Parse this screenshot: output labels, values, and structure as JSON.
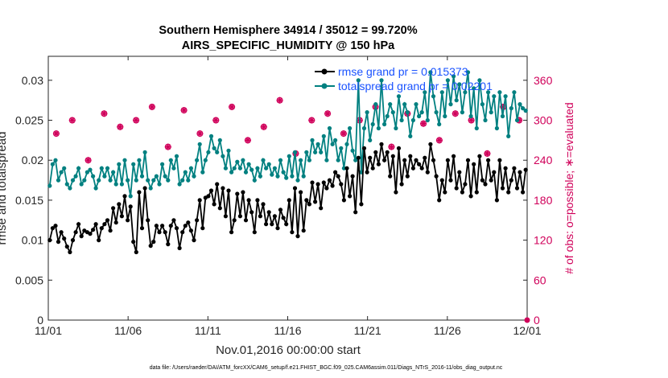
{
  "figure": {
    "title_line1": "Southern Hemisphere 34914 / 35012 = 99.720%",
    "title_line2": "AIRS_SPECIFIC_HUMIDITY @ 150 hPa",
    "xlabel": "Nov.01,2016 00:00:00 start",
    "ylabel_left": "rmse and totalspread",
    "ylabel_right": "# of obs: o=possible; ∗=evaluated",
    "footnote": "data file: /Users/raeder/DAI/ATM_forcXX/CAM6_setup/f.e21.FHIST_BGC.f09_025.CAM6assim.011/Diags_NTrS_2016-11/obs_diag_output.nc"
  },
  "colors": {
    "rmse": "#000000",
    "spread": "#008080",
    "obs": "#d0005a",
    "legend_text": "#1a53ff"
  },
  "chart_data": {
    "type": "line",
    "title": "Southern Hemisphere 34914 / 35012 = 99.720%",
    "subtitle": "AIRS_SPECIFIC_HUMIDITY @ 150 hPa",
    "xlabel": "Nov.01,2016 00:00:00 start",
    "ylabel": "rmse and totalspread",
    "y2label": "# of obs: o=possible; ∗=evaluated",
    "x_ticks": [
      "11/01",
      "11/06",
      "11/11",
      "11/16",
      "11/21",
      "11/26",
      "12/01"
    ],
    "xlim_days": [
      0,
      30
    ],
    "ylim": [
      0,
      0.033
    ],
    "y_ticks": [
      "0",
      "0.005",
      "0.01",
      "0.015",
      "0.02",
      "0.025",
      "0.03"
    ],
    "y2lim": [
      0,
      396
    ],
    "y2_ticks": [
      "0",
      "60",
      "120",
      "180",
      "240",
      "300",
      "360"
    ],
    "legend_position": "top-right",
    "grid": false,
    "series": [
      {
        "name": "rmse grand pr = 0.015373",
        "axis": "left",
        "marker": "circle",
        "line": true,
        "values": [
          0.01,
          0.0115,
          0.0118,
          0.0098,
          0.011,
          0.0102,
          0.0092,
          0.0085,
          0.01,
          0.011,
          0.012,
          0.0105,
          0.0112,
          0.011,
          0.0108,
          0.0113,
          0.012,
          0.01,
          0.0115,
          0.012,
          0.0125,
          0.0112,
          0.014,
          0.0122,
          0.0145,
          0.013,
          0.0155,
          0.0125,
          0.0142,
          0.0098,
          0.0085,
          0.016,
          0.0115,
          0.0165,
          0.0125,
          0.0093,
          0.0098,
          0.0118,
          0.011,
          0.0118,
          0.011,
          0.0095,
          0.0118,
          0.0125,
          0.0115,
          0.009,
          0.011,
          0.0118,
          0.0122,
          0.0112,
          0.01,
          0.0125,
          0.015,
          0.0115,
          0.0153,
          0.0155,
          0.0162,
          0.0145,
          0.017,
          0.014,
          0.0165,
          0.013,
          0.0162,
          0.011,
          0.0125,
          0.0158,
          0.013,
          0.016,
          0.0125,
          0.015,
          0.0135,
          0.011,
          0.015,
          0.013,
          0.0145,
          0.012,
          0.0135,
          0.012,
          0.013,
          0.0115,
          0.0138,
          0.0128,
          0.012,
          0.015,
          0.011,
          0.0165,
          0.0105,
          0.016,
          0.0112,
          0.015,
          0.0145,
          0.0172,
          0.0148,
          0.017,
          0.014,
          0.0172,
          0.0165,
          0.0175,
          0.0168,
          0.0185,
          0.018,
          0.017,
          0.015,
          0.019,
          0.0155,
          0.018,
          0.0135,
          0.0203,
          0.0145,
          0.0215,
          0.0185,
          0.0203,
          0.019,
          0.021,
          0.0195,
          0.022,
          0.02,
          0.021,
          0.018,
          0.0205,
          0.016,
          0.0215,
          0.017,
          0.02,
          0.018,
          0.0205,
          0.019,
          0.02,
          0.0195,
          0.019,
          0.0203,
          0.0185,
          0.022,
          0.02,
          0.018,
          0.015,
          0.0175,
          0.016,
          0.02,
          0.0175,
          0.0205,
          0.0165,
          0.0185,
          0.016,
          0.017,
          0.02,
          0.0155,
          0.0195,
          0.016,
          0.0205,
          0.0175,
          0.017,
          0.02,
          0.0175,
          0.0185,
          0.015,
          0.02,
          0.0165,
          0.019,
          0.016,
          0.0175,
          0.019,
          0.0165,
          0.0185,
          0.016,
          0.0188
        ]
      },
      {
        "name": "totalspread grand pr = 0.02201",
        "axis": "left",
        "marker": "circle",
        "line": true,
        "values": [
          0.0168,
          0.0195,
          0.02,
          0.0175,
          0.0185,
          0.019,
          0.017,
          0.0165,
          0.0175,
          0.018,
          0.019,
          0.017,
          0.0175,
          0.0185,
          0.0188,
          0.018,
          0.0165,
          0.0175,
          0.019,
          0.018,
          0.019,
          0.0175,
          0.0185,
          0.017,
          0.0195,
          0.017,
          0.02,
          0.0175,
          0.0155,
          0.0195,
          0.0175,
          0.02,
          0.018,
          0.021,
          0.0175,
          0.0165,
          0.0175,
          0.018,
          0.017,
          0.0195,
          0.018,
          0.0175,
          0.02,
          0.019,
          0.0205,
          0.017,
          0.0175,
          0.0185,
          0.0175,
          0.019,
          0.018,
          0.02,
          0.022,
          0.0185,
          0.02,
          0.021,
          0.023,
          0.0215,
          0.021,
          0.0225,
          0.0205,
          0.019,
          0.0212,
          0.0185,
          0.019,
          0.0198,
          0.019,
          0.02,
          0.0185,
          0.0195,
          0.0188,
          0.0175,
          0.019,
          0.018,
          0.02,
          0.019,
          0.0195,
          0.0182,
          0.019,
          0.018,
          0.02,
          0.0185,
          0.0178,
          0.0205,
          0.018,
          0.021,
          0.0175,
          0.02,
          0.018,
          0.021,
          0.02,
          0.0225,
          0.021,
          0.022,
          0.021,
          0.023,
          0.02,
          0.024,
          0.022,
          0.0225,
          0.02,
          0.0215,
          0.019,
          0.022,
          0.024,
          0.0212,
          0.02,
          0.03,
          0.0185,
          0.024,
          0.026,
          0.0225,
          0.0245,
          0.027,
          0.024,
          0.03,
          0.0245,
          0.0255,
          0.027,
          0.026,
          0.024,
          0.028,
          0.025,
          0.027,
          0.026,
          0.023,
          0.025,
          0.027,
          0.0255,
          0.026,
          0.0285,
          0.025,
          0.031,
          0.028,
          0.026,
          0.0245,
          0.0285,
          0.0255,
          0.03,
          0.027,
          0.0305,
          0.0275,
          0.0295,
          0.026,
          0.0285,
          0.031,
          0.0255,
          0.029,
          0.024,
          0.03,
          0.027,
          0.025,
          0.0285,
          0.026,
          0.028,
          0.024,
          0.0285,
          0.0255,
          0.028,
          0.023,
          0.0265,
          0.0285,
          0.025,
          0.027,
          0.0265,
          0.0262
        ]
      },
      {
        "name": "obs possible",
        "axis": "right",
        "marker": "o",
        "line": false,
        "values": [
          280,
          300,
          240,
          310,
          290,
          300,
          320,
          260,
          315,
          280,
          300,
          320,
          270,
          290,
          330,
          250,
          300,
          310,
          280,
          300,
          320,
          260,
          310,
          295,
          270,
          310,
          300,
          250,
          320,
          300
        ]
      },
      {
        "name": "obs evaluated",
        "axis": "right",
        "marker": "*",
        "line": false,
        "values": [
          280,
          300,
          240,
          310,
          290,
          300,
          320,
          260,
          315,
          280,
          300,
          320,
          270,
          290,
          330,
          250,
          300,
          310,
          280,
          300,
          320,
          260,
          310,
          295,
          270,
          310,
          300,
          250,
          320,
          300
        ]
      }
    ]
  }
}
